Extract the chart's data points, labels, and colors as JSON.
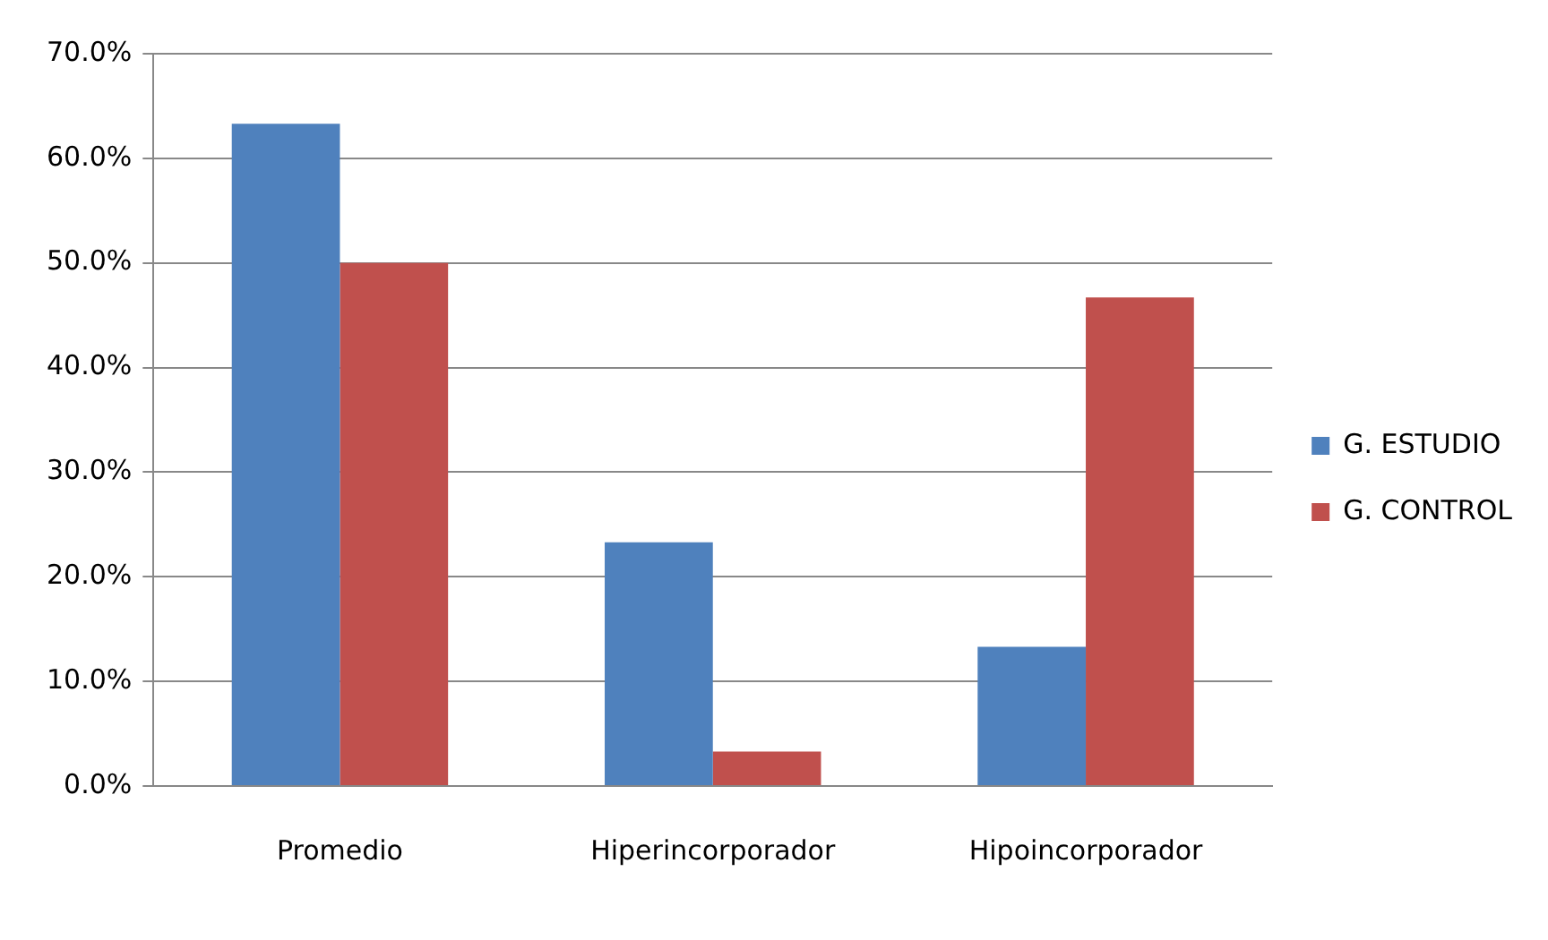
{
  "chart_data": {
    "type": "bar",
    "categories": [
      "Promedio",
      "Hiperincorporador",
      "Hipoincorporador"
    ],
    "series": [
      {
        "name": "G. ESTUDIO",
        "color": "#4f81bd",
        "values": [
          63.3,
          23.3,
          13.3
        ]
      },
      {
        "name": "G. CONTROL",
        "color": "#c0504d",
        "values": [
          50.0,
          3.3,
          46.7
        ]
      }
    ],
    "ylim": [
      0,
      70
    ],
    "yticks": [
      {
        "value": 0,
        "label": "0.0%"
      },
      {
        "value": 10,
        "label": "10.0%"
      },
      {
        "value": 20,
        "label": "20.0%"
      },
      {
        "value": 30,
        "label": "30.0%"
      },
      {
        "value": 40,
        "label": "40.0%"
      },
      {
        "value": 50,
        "label": "50.0%"
      },
      {
        "value": 60,
        "label": "60.0%"
      },
      {
        "value": 70,
        "label": "70.0%"
      }
    ],
    "grid": "y",
    "legend": "right"
  }
}
